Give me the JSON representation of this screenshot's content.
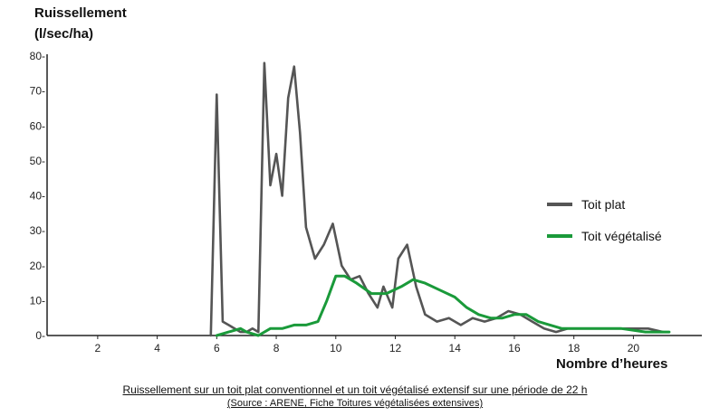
{
  "chart_data": {
    "type": "line",
    "ylabel_line1": "Ruissellement",
    "ylabel_line2": "(l/sec/ha)",
    "xlabel": "Nombre d’heures",
    "xlim": [
      0.3,
      22.3
    ],
    "ylim": [
      0,
      80
    ],
    "x_ticks": [
      2,
      4,
      6,
      8,
      10,
      12,
      14,
      16,
      18,
      20
    ],
    "y_ticks": [
      0,
      10,
      20,
      30,
      40,
      50,
      60,
      70,
      80
    ],
    "y_tick_labels": [
      "0-",
      "10-",
      "20-",
      "30-",
      "40-",
      "50-",
      "60-",
      "70-",
      "80-"
    ],
    "grid": false,
    "legend_position": "right",
    "series": [
      {
        "name": "Toit plat",
        "color": "#555555",
        "x": [
          5.8,
          6.0,
          6.2,
          6.4,
          6.6,
          6.8,
          7.0,
          7.2,
          7.4,
          7.6,
          7.8,
          8.0,
          8.2,
          8.4,
          8.6,
          8.8,
          9.0,
          9.3,
          9.6,
          9.9,
          10.2,
          10.5,
          10.8,
          11.1,
          11.4,
          11.6,
          11.9,
          12.1,
          12.4,
          12.7,
          13.0,
          13.4,
          13.8,
          14.2,
          14.6,
          15.0,
          15.4,
          15.8,
          16.2,
          16.6,
          17.0,
          17.4,
          17.8,
          18.5,
          19.5,
          20.5,
          21.0
        ],
        "y": [
          0,
          69,
          4,
          3,
          2,
          1,
          1,
          2,
          1,
          78,
          43,
          52,
          40,
          68,
          77,
          58,
          31,
          22,
          26,
          32,
          20,
          16,
          17,
          12,
          8,
          14,
          8,
          22,
          26,
          14,
          6,
          4,
          5,
          3,
          5,
          4,
          5,
          7,
          6,
          4,
          2,
          1,
          2,
          2,
          2,
          2,
          1
        ]
      },
      {
        "name": "Toit végétalisé",
        "color": "#1a9a3a",
        "x": [
          6.0,
          6.4,
          6.8,
          7.0,
          7.4,
          7.8,
          8.2,
          8.6,
          9.0,
          9.4,
          9.7,
          10.0,
          10.3,
          10.7,
          11.2,
          11.7,
          12.2,
          12.6,
          13.0,
          13.5,
          14.0,
          14.4,
          14.8,
          15.2,
          15.6,
          16.0,
          16.4,
          16.8,
          17.2,
          17.6,
          18.0,
          18.8,
          19.6,
          20.4,
          21.2
        ],
        "y": [
          0,
          1,
          2,
          1,
          0,
          2,
          2,
          3,
          3,
          4,
          10,
          17,
          17,
          15,
          12,
          12,
          14,
          16,
          15,
          13,
          11,
          8,
          6,
          5,
          5,
          6,
          6,
          4,
          3,
          2,
          2,
          2,
          2,
          1,
          1
        ]
      }
    ]
  },
  "caption": "Ruissellement sur un toit plat conventionnel et un toit végétalisé extensif sur une période de 22 h",
  "source": "(Source : ARENE, Fiche Toitures végétalisées extensives)"
}
